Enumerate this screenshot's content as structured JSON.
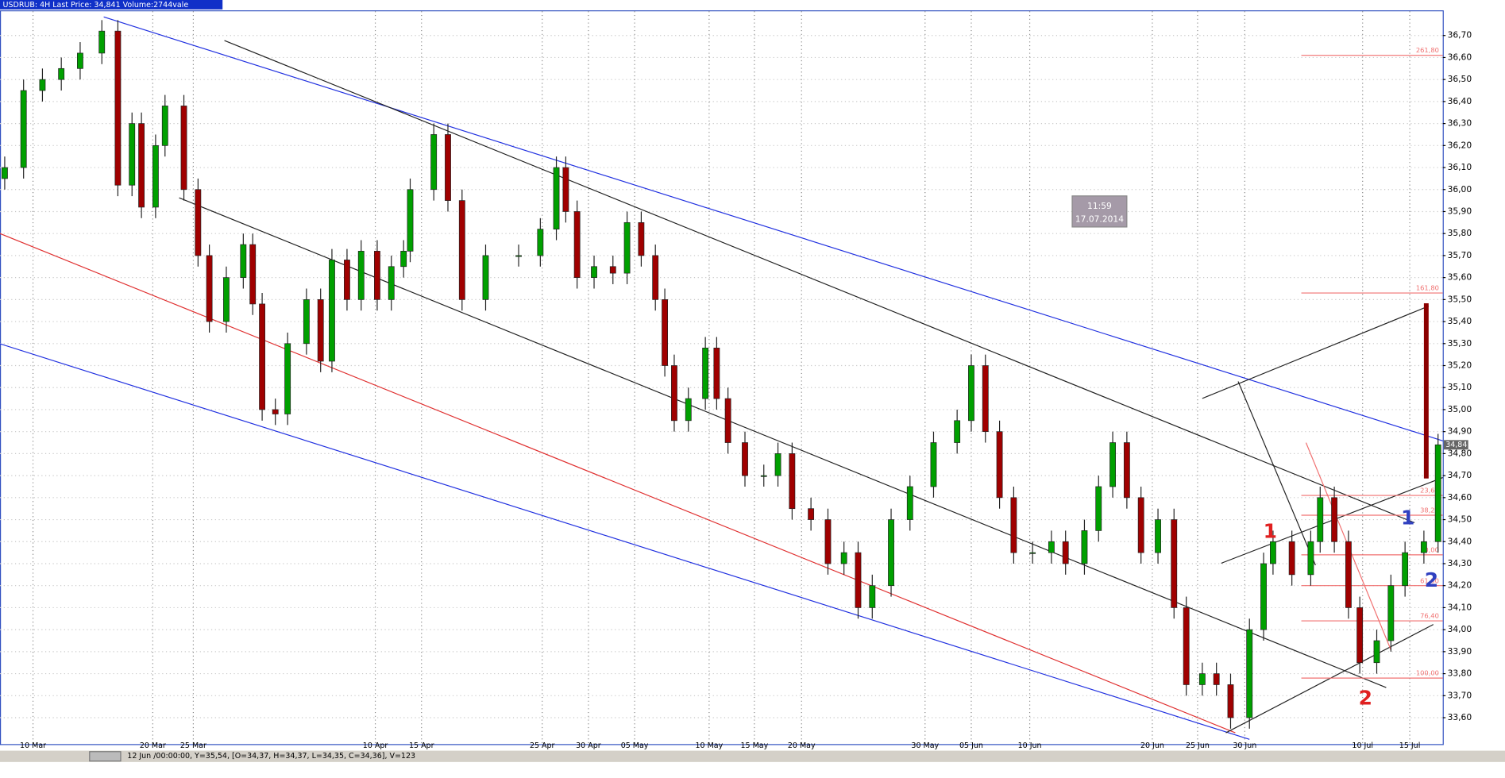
{
  "chart_data": {
    "type": "candlestick",
    "title": "USDRUB: 4H Last Price: 34,841 Volume:2744vale",
    "x": [
      5,
      25,
      45,
      65,
      85,
      108,
      125,
      140,
      150,
      165,
      175,
      195,
      210,
      222,
      240,
      258,
      268,
      278,
      292,
      305,
      325,
      340,
      352,
      368,
      383,
      400,
      415,
      428,
      435,
      460,
      475,
      490,
      515,
      550,
      573,
      590,
      600,
      612,
      630,
      650,
      665,
      680,
      695,
      705,
      715,
      730,
      748,
      760,
      772,
      790,
      810,
      825,
      840,
      860,
      878,
      895,
      910,
      925,
      945,
      965,
      990,
      1015,
      1030,
      1045,
      1060,
      1075,
      1095,
      1115,
      1130,
      1150,
      1165,
      1180,
      1195,
      1210,
      1228,
      1245,
      1258,
      1275,
      1290,
      1305,
      1325,
      1340,
      1350,
      1370,
      1390,
      1400,
      1415,
      1430,
      1442,
      1460,
      1475,
      1490,
      1510,
      1525
    ],
    "open": [
      36.05,
      36.1,
      36.45,
      36.5,
      36.55,
      36.62,
      36.72,
      36.02,
      36.3,
      35.92,
      36.2,
      36.38,
      36.0,
      35.7,
      35.4,
      35.6,
      35.75,
      35.48,
      35.0,
      34.98,
      35.3,
      35.5,
      35.22,
      35.68,
      35.5,
      35.72,
      35.5,
      35.65,
      35.72,
      36.0,
      36.25,
      35.95,
      35.5,
      35.7,
      35.7,
      35.82,
      36.1,
      35.9,
      35.6,
      35.65,
      35.62,
      35.85,
      35.7,
      35.5,
      35.2,
      34.95,
      35.05,
      35.28,
      35.05,
      34.85,
      34.7,
      34.7,
      34.8,
      34.55,
      34.5,
      34.3,
      34.35,
      34.1,
      34.2,
      34.5,
      34.65,
      34.85,
      34.95,
      35.2,
      34.9,
      34.6,
      34.35,
      34.35,
      34.4,
      34.3,
      34.45,
      34.65,
      34.85,
      34.6,
      34.35,
      34.5,
      34.1,
      33.75,
      33.8,
      33.75,
      33.6,
      34.0,
      34.3,
      34.4,
      34.25,
      34.4,
      34.6,
      34.4,
      34.1,
      33.85,
      33.95,
      34.2,
      34.35,
      34.4
    ],
    "high": [
      36.15,
      36.5,
      36.55,
      36.6,
      36.67,
      36.77,
      36.77,
      36.35,
      36.35,
      36.25,
      36.43,
      36.43,
      36.05,
      35.75,
      35.65,
      35.8,
      35.8,
      35.53,
      35.05,
      35.35,
      35.55,
      35.55,
      35.73,
      35.73,
      35.77,
      35.77,
      35.7,
      35.77,
      36.05,
      36.3,
      36.3,
      36.0,
      35.75,
      35.75,
      35.87,
      36.15,
      36.15,
      35.95,
      35.7,
      35.7,
      35.9,
      35.9,
      35.75,
      35.55,
      35.25,
      35.1,
      35.33,
      35.33,
      35.1,
      34.9,
      34.75,
      34.85,
      34.85,
      34.6,
      34.55,
      34.4,
      34.4,
      34.25,
      34.55,
      34.7,
      34.9,
      35.0,
      35.25,
      35.25,
      34.95,
      34.65,
      34.4,
      34.45,
      34.45,
      34.5,
      34.7,
      34.9,
      34.9,
      34.65,
      34.55,
      34.55,
      34.15,
      33.85,
      33.85,
      33.8,
      34.05,
      34.35,
      34.45,
      34.45,
      34.45,
      34.65,
      34.65,
      34.45,
      34.15,
      34.0,
      34.25,
      34.4,
      34.45,
      34.89
    ],
    "low": [
      36.0,
      36.05,
      36.4,
      36.45,
      36.5,
      36.57,
      35.97,
      35.97,
      35.87,
      35.87,
      36.15,
      35.95,
      35.65,
      35.35,
      35.35,
      35.55,
      35.43,
      34.95,
      34.93,
      34.93,
      35.25,
      35.17,
      35.17,
      35.45,
      35.45,
      35.45,
      35.45,
      35.6,
      35.67,
      35.95,
      35.9,
      35.45,
      35.45,
      35.65,
      35.65,
      35.77,
      35.85,
      35.55,
      35.55,
      35.57,
      35.57,
      35.65,
      35.45,
      35.15,
      34.9,
      34.9,
      35.0,
      35.0,
      34.8,
      34.65,
      34.65,
      34.65,
      34.5,
      34.45,
      34.25,
      34.25,
      34.05,
      34.05,
      34.15,
      34.45,
      34.6,
      34.8,
      34.9,
      34.85,
      34.55,
      34.3,
      34.3,
      34.3,
      34.25,
      34.25,
      34.4,
      34.6,
      34.55,
      34.3,
      34.3,
      34.05,
      33.7,
      33.7,
      33.7,
      33.55,
      33.55,
      33.95,
      34.25,
      34.2,
      34.2,
      34.35,
      34.35,
      34.05,
      33.8,
      33.8,
      33.9,
      34.15,
      34.3,
      34.35
    ],
    "close": [
      36.1,
      36.45,
      36.5,
      36.55,
      36.62,
      36.72,
      36.02,
      36.3,
      35.92,
      36.2,
      36.38,
      36.0,
      35.7,
      35.4,
      35.6,
      35.75,
      35.48,
      35.0,
      34.98,
      35.3,
      35.5,
      35.22,
      35.68,
      35.5,
      35.72,
      35.5,
      35.65,
      35.72,
      36.0,
      36.25,
      35.95,
      35.5,
      35.7,
      35.7,
      35.82,
      36.1,
      35.9,
      35.6,
      35.65,
      35.62,
      35.85,
      35.7,
      35.5,
      35.2,
      34.95,
      35.05,
      35.28,
      35.05,
      34.85,
      34.7,
      34.7,
      34.8,
      34.55,
      34.5,
      34.3,
      34.35,
      34.1,
      34.2,
      34.5,
      34.65,
      34.85,
      34.95,
      35.2,
      34.9,
      34.6,
      34.35,
      34.35,
      34.4,
      34.3,
      34.45,
      34.65,
      34.85,
      34.6,
      34.35,
      34.5,
      34.1,
      33.75,
      33.8,
      33.75,
      33.6,
      34.0,
      34.3,
      34.4,
      34.25,
      34.4,
      34.6,
      34.4,
      34.1,
      33.85,
      33.95,
      34.2,
      34.35,
      34.4,
      34.84
    ],
    "up_color": "#00a000",
    "down_color": "#a00000",
    "xlim": [
      0,
      1530
    ],
    "xticks": [
      {
        "value": 35,
        "label": "10 Mar"
      },
      {
        "value": 162,
        "label": "20 Mar"
      },
      {
        "value": 205,
        "label": "25 Mar"
      },
      {
        "value": 398,
        "label": "10 Apr"
      },
      {
        "value": 447,
        "label": "15 Apr"
      },
      {
        "value": 575,
        "label": "25 Apr"
      },
      {
        "value": 624,
        "label": "30 Apr"
      },
      {
        "value": 673,
        "label": "05 May"
      },
      {
        "value": 752,
        "label": "10 May"
      },
      {
        "value": 800,
        "label": "15 May"
      },
      {
        "value": 850,
        "label": "20 May"
      },
      {
        "value": 981,
        "label": "30 May"
      },
      {
        "value": 1030,
        "label": "05 Jun"
      },
      {
        "value": 1092,
        "label": "10 Jun"
      },
      {
        "value": 1222,
        "label": "20 Jun"
      },
      {
        "value": 1270,
        "label": "25 Jun"
      },
      {
        "value": 1320,
        "label": "30 Jun"
      },
      {
        "value": 1445,
        "label": "10 Jul"
      },
      {
        "value": 1495,
        "label": "15 Jul"
      }
    ],
    "ylim": [
      33.48,
      36.81
    ],
    "yticks": [
      {
        "value": 36.7,
        "label": "36,70"
      },
      {
        "value": 36.6,
        "label": "36,60"
      },
      {
        "value": 36.5,
        "label": "36,50"
      },
      {
        "value": 36.4,
        "label": "36,40"
      },
      {
        "value": 36.3,
        "label": "36,30"
      },
      {
        "value": 36.2,
        "label": "36,20"
      },
      {
        "value": 36.1,
        "label": "36,10"
      },
      {
        "value": 36.0,
        "label": "36,00"
      },
      {
        "value": 35.9,
        "label": "35,90"
      },
      {
        "value": 35.8,
        "label": "35,80"
      },
      {
        "value": 35.7,
        "label": "35,70"
      },
      {
        "value": 35.6,
        "label": "35,60"
      },
      {
        "value": 35.5,
        "label": "35,50"
      },
      {
        "value": 35.4,
        "label": "35,40"
      },
      {
        "value": 35.3,
        "label": "35,30"
      },
      {
        "value": 35.2,
        "label": "35,20"
      },
      {
        "value": 35.1,
        "label": "35,10"
      },
      {
        "value": 35.0,
        "label": "35,00"
      },
      {
        "value": 34.9,
        "label": "34,90"
      },
      {
        "value": 34.8,
        "label": "34,80"
      },
      {
        "value": 34.7,
        "label": "34,70"
      },
      {
        "value": 34.6,
        "label": "34,60"
      },
      {
        "value": 34.5,
        "label": "34,50"
      },
      {
        "value": 34.4,
        "label": "34,40"
      },
      {
        "value": 34.3,
        "label": "34,30"
      },
      {
        "value": 34.2,
        "label": "34,20"
      },
      {
        "value": 34.1,
        "label": "34,10"
      },
      {
        "value": 34.0,
        "label": "34,00"
      },
      {
        "value": 33.9,
        "label": "33,90"
      },
      {
        "value": 33.8,
        "label": "33,80"
      },
      {
        "value": 33.7,
        "label": "33,70"
      },
      {
        "value": 33.6,
        "label": "33,60"
      }
    ],
    "grid": true,
    "last_price": {
      "value": 34.84,
      "label": "34,84"
    },
    "fib_levels": [
      {
        "value": 36.61,
        "label": "261,80"
      },
      {
        "value": 35.53,
        "label": "161,80"
      },
      {
        "value": 34.61,
        "label": "23,60"
      },
      {
        "value": 34.52,
        "label": "38,20"
      },
      {
        "value": 34.34,
        "label": "50,00"
      },
      {
        "value": 34.2,
        "label": "61,80"
      },
      {
        "value": 34.04,
        "label": "76,40"
      },
      {
        "value": 33.78,
        "label": "100,00"
      }
    ],
    "fib_color": "#f07070",
    "wave_labels": [
      "1",
      "2",
      "1",
      "2"
    ]
  },
  "tooltip": {
    "time": "11:59",
    "date": "17.07.2014"
  },
  "status_bar": "12 Jun /00:00:00, Y=35,54, [O=34,37, H=34,37, L=34,35, C=34,36], V=123"
}
